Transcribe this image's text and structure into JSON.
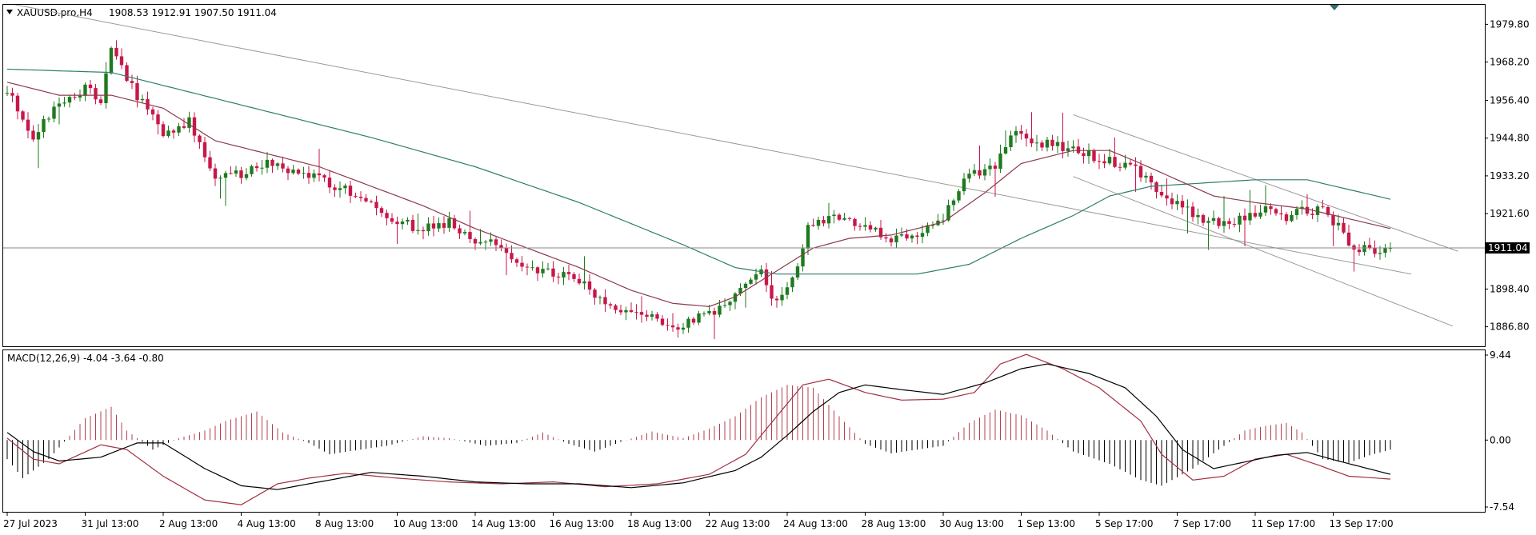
{
  "header": {
    "symbol_timeframe": "XAUUSD.pro,H4",
    "ohlc": "1908.53 1912.91 1907.50 1911.04"
  },
  "macd_header": "MACD(12,26,9) -4.04 -3.64 -0.80",
  "colors": {
    "bull": "#1e7a1e",
    "bear": "#c8174a",
    "ma_fast": "#8b3a4a",
    "ma_slow": "#2e7d6e",
    "trend": "#9a9a9a",
    "macd_line": "#000000",
    "signal_line": "#a03040",
    "hist_neg": "#000000",
    "hist_pos": "#b04050",
    "price_tag_bg": "#000000",
    "frame": "#000000"
  },
  "chart_data": [
    {
      "type": "candlestick",
      "symbol": "XAUUSD.pro",
      "timeframe": "H4",
      "ylim": [
        1880.8,
        1985.8
      ],
      "y_ticks": [
        "1979.80",
        "1968.20",
        "1956.40",
        "1944.80",
        "1933.20",
        "1921.60",
        "1898.40",
        "1886.80"
      ],
      "x_ticks": [
        "27 Jul 2023",
        "31 Jul 13:00",
        "2 Aug 13:00",
        "4 Aug 13:00",
        "8 Aug 13:00",
        "10 Aug 13:00",
        "14 Aug 13:00",
        "16 Aug 13:00",
        "18 Aug 13:00",
        "22 Aug 13:00",
        "24 Aug 13:00",
        "28 Aug 13:00",
        "30 Aug 13:00",
        "1 Sep 13:00",
        "5 Sep 17:00",
        "7 Sep 17:00",
        "11 Sep 17:00",
        "13 Sep 17:00"
      ],
      "last_price": 1911.04,
      "last_price_label": "1911.04",
      "close_anchors": [
        [
          0,
          1960
        ],
        [
          5,
          1945
        ],
        [
          10,
          1956
        ],
        [
          15,
          1960
        ],
        [
          18,
          1956
        ],
        [
          20,
          1972
        ],
        [
          25,
          1958
        ],
        [
          30,
          1946
        ],
        [
          35,
          1950
        ],
        [
          40,
          1932
        ],
        [
          45,
          1934
        ],
        [
          50,
          1938
        ],
        [
          55,
          1934
        ],
        [
          60,
          1932
        ],
        [
          65,
          1929
        ],
        [
          70,
          1925
        ],
        [
          75,
          1919
        ],
        [
          80,
          1917
        ],
        [
          85,
          1919
        ],
        [
          90,
          1914
        ],
        [
          95,
          1911
        ],
        [
          100,
          1905
        ],
        [
          105,
          1903
        ],
        [
          110,
          1901
        ],
        [
          115,
          1893
        ],
        [
          120,
          1891
        ],
        [
          125,
          1889
        ],
        [
          130,
          1887
        ],
        [
          135,
          1891
        ],
        [
          140,
          1896
        ],
        [
          145,
          1903
        ],
        [
          148,
          1894
        ],
        [
          152,
          1905
        ],
        [
          154,
          1918
        ],
        [
          160,
          1920
        ],
        [
          165,
          1917
        ],
        [
          170,
          1914
        ],
        [
          175,
          1916
        ],
        [
          180,
          1920
        ],
        [
          185,
          1934
        ],
        [
          190,
          1936
        ],
        [
          193,
          1946
        ],
        [
          200,
          1943
        ],
        [
          205,
          1941
        ],
        [
          212,
          1938
        ],
        [
          217,
          1935
        ],
        [
          222,
          1927
        ],
        [
          226,
          1924
        ],
        [
          229,
          1920
        ],
        [
          234,
          1918
        ],
        [
          238,
          1920
        ],
        [
          242,
          1923
        ],
        [
          246,
          1920
        ],
        [
          249,
          1923
        ],
        [
          253,
          1922
        ],
        [
          256,
          1918
        ],
        [
          258,
          1912
        ],
        [
          263,
          1910
        ],
        [
          266,
          1911.04
        ]
      ],
      "ma_fast_anchors": [
        [
          0,
          1962
        ],
        [
          10,
          1958
        ],
        [
          20,
          1958
        ],
        [
          30,
          1954
        ],
        [
          40,
          1944
        ],
        [
          50,
          1940
        ],
        [
          60,
          1936
        ],
        [
          70,
          1930
        ],
        [
          80,
          1924
        ],
        [
          90,
          1917
        ],
        [
          100,
          1911
        ],
        [
          110,
          1905
        ],
        [
          120,
          1898
        ],
        [
          128,
          1894
        ],
        [
          135,
          1893
        ],
        [
          140,
          1896
        ],
        [
          148,
          1904
        ],
        [
          155,
          1911
        ],
        [
          162,
          1914
        ],
        [
          170,
          1915
        ],
        [
          180,
          1919
        ],
        [
          188,
          1928
        ],
        [
          195,
          1937
        ],
        [
          205,
          1941
        ],
        [
          212,
          1941
        ],
        [
          218,
          1937
        ],
        [
          225,
          1932
        ],
        [
          232,
          1927
        ],
        [
          240,
          1925
        ],
        [
          250,
          1923
        ],
        [
          258,
          1920
        ],
        [
          266,
          1917
        ]
      ],
      "ma_slow_anchors": [
        [
          0,
          1966
        ],
        [
          20,
          1965
        ],
        [
          30,
          1961
        ],
        [
          50,
          1953
        ],
        [
          70,
          1945
        ],
        [
          90,
          1936
        ],
        [
          110,
          1925
        ],
        [
          130,
          1912
        ],
        [
          140,
          1905
        ],
        [
          148,
          1903
        ],
        [
          160,
          1903
        ],
        [
          175,
          1903
        ],
        [
          185,
          1906
        ],
        [
          195,
          1914
        ],
        [
          205,
          1921
        ],
        [
          212,
          1927
        ],
        [
          220,
          1930
        ],
        [
          230,
          1931
        ],
        [
          240,
          1932
        ],
        [
          250,
          1932
        ],
        [
          266,
          1926
        ]
      ],
      "trendlines": [
        {
          "start": [
            1.0,
            1986
          ],
          "end": [
            270.0,
            1903
          ]
        },
        {
          "start": [
            205.0,
            1952
          ],
          "end": [
            279.0,
            1910
          ]
        },
        {
          "start": [
            205.0,
            1933
          ],
          "end": [
            278.0,
            1887
          ]
        }
      ]
    },
    {
      "type": "macd",
      "params": "12,26,9",
      "ylim": [
        -7.54,
        9.44
      ],
      "y_ticks": [
        "9.44",
        "0.00",
        "-7.54"
      ],
      "main_anchors": [
        [
          0,
          0.8
        ],
        [
          5,
          -1.2
        ],
        [
          10,
          -2.2
        ],
        [
          18,
          -1.8
        ],
        [
          25,
          -0.3
        ],
        [
          30,
          -0.3
        ],
        [
          38,
          -3.0
        ],
        [
          45,
          -4.8
        ],
        [
          52,
          -5.2
        ],
        [
          60,
          -4.4
        ],
        [
          70,
          -3.4
        ],
        [
          80,
          -3.8
        ],
        [
          90,
          -4.4
        ],
        [
          100,
          -4.6
        ],
        [
          110,
          -4.6
        ],
        [
          120,
          -5.0
        ],
        [
          130,
          -4.5
        ],
        [
          140,
          -3.2
        ],
        [
          145,
          -1.8
        ],
        [
          150,
          0.5
        ],
        [
          155,
          3.0
        ],
        [
          160,
          5.0
        ],
        [
          165,
          5.8
        ],
        [
          172,
          5.3
        ],
        [
          180,
          4.8
        ],
        [
          188,
          6.0
        ],
        [
          195,
          7.5
        ],
        [
          200,
          8.0
        ],
        [
          208,
          7.0
        ],
        [
          215,
          5.5
        ],
        [
          221,
          2.5
        ],
        [
          226,
          -1.0
        ],
        [
          232,
          -3.0
        ],
        [
          238,
          -2.3
        ],
        [
          244,
          -1.6
        ],
        [
          250,
          -1.3
        ],
        [
          256,
          -2.2
        ],
        [
          266,
          -3.6
        ]
      ],
      "signal_anchors": [
        [
          0,
          0.2
        ],
        [
          5,
          -2.0
        ],
        [
          10,
          -2.5
        ],
        [
          18,
          -0.5
        ],
        [
          23,
          -1.0
        ],
        [
          30,
          -3.8
        ],
        [
          38,
          -6.3
        ],
        [
          45,
          -6.8
        ],
        [
          52,
          -4.6
        ],
        [
          58,
          -4.0
        ],
        [
          65,
          -3.5
        ],
        [
          75,
          -4.0
        ],
        [
          85,
          -4.4
        ],
        [
          95,
          -4.6
        ],
        [
          105,
          -4.4
        ],
        [
          115,
          -4.9
        ],
        [
          125,
          -4.6
        ],
        [
          135,
          -3.6
        ],
        [
          142,
          -1.5
        ],
        [
          148,
          2.5
        ],
        [
          153,
          5.8
        ],
        [
          158,
          6.4
        ],
        [
          165,
          5.0
        ],
        [
          172,
          4.2
        ],
        [
          180,
          4.3
        ],
        [
          186,
          5.0
        ],
        [
          191,
          8.0
        ],
        [
          196,
          9.0
        ],
        [
          203,
          7.5
        ],
        [
          210,
          5.5
        ],
        [
          218,
          2.0
        ],
        [
          222,
          -1.5
        ],
        [
          228,
          -4.2
        ],
        [
          234,
          -3.8
        ],
        [
          240,
          -2.0
        ],
        [
          246,
          -1.5
        ],
        [
          252,
          -2.6
        ],
        [
          258,
          -3.8
        ],
        [
          266,
          -4.1
        ]
      ],
      "hist_anchors": [
        [
          0,
          -2.0
        ],
        [
          3,
          -4.0
        ],
        [
          8,
          -2.0
        ],
        [
          15,
          2.3
        ],
        [
          20,
          3.5
        ],
        [
          23,
          1.0
        ],
        [
          28,
          -1.0
        ],
        [
          33,
          0.2
        ],
        [
          38,
          1.0
        ],
        [
          42,
          2.0
        ],
        [
          48,
          3.0
        ],
        [
          53,
          0.8
        ],
        [
          58,
          -0.3
        ],
        [
          62,
          -1.5
        ],
        [
          68,
          -1.0
        ],
        [
          73,
          -0.6
        ],
        [
          80,
          0.4
        ],
        [
          85,
          0.2
        ],
        [
          92,
          -0.6
        ],
        [
          98,
          -0.3
        ],
        [
          103,
          0.8
        ],
        [
          108,
          -0.4
        ],
        [
          113,
          -1.2
        ],
        [
          118,
          -0.2
        ],
        [
          124,
          0.9
        ],
        [
          130,
          0.2
        ],
        [
          135,
          1.2
        ],
        [
          140,
          2.5
        ],
        [
          145,
          4.5
        ],
        [
          150,
          5.8
        ],
        [
          155,
          5.5
        ],
        [
          160,
          2.5
        ],
        [
          165,
          -0.4
        ],
        [
          170,
          -1.4
        ],
        [
          175,
          -1.0
        ],
        [
          180,
          -0.6
        ],
        [
          185,
          1.8
        ],
        [
          190,
          3.2
        ],
        [
          195,
          2.6
        ],
        [
          200,
          1.0
        ],
        [
          205,
          -1.2
        ],
        [
          212,
          -2.5
        ],
        [
          218,
          -4.2
        ],
        [
          222,
          -4.8
        ],
        [
          228,
          -3.0
        ],
        [
          233,
          -1.0
        ],
        [
          238,
          1.0
        ],
        [
          242,
          1.5
        ],
        [
          246,
          1.8
        ],
        [
          249,
          0.8
        ],
        [
          253,
          -2.0
        ],
        [
          258,
          -2.4
        ],
        [
          262,
          -1.6
        ],
        [
          266,
          -1.0
        ]
      ]
    }
  ]
}
